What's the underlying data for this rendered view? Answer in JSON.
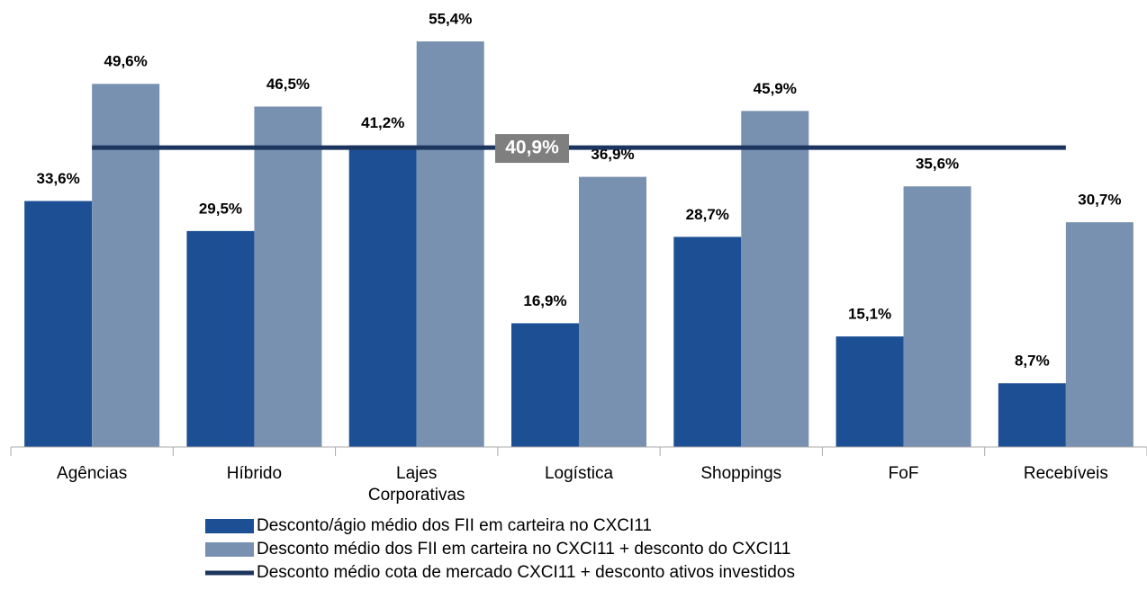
{
  "chart_data": {
    "type": "bar",
    "categories": [
      "Agências",
      "Híbrido",
      "Lajes Corporativas",
      "Logística",
      "Shoppings",
      "FoF",
      "Recebíveis"
    ],
    "series": [
      {
        "name": "Desconto/ágio médio dos FII em carteira no CXCI11",
        "color": "#1c4f94",
        "values": [
          33.6,
          29.5,
          41.2,
          16.9,
          28.7,
          15.1,
          8.7
        ],
        "value_labels": [
          "33,6%",
          "29,5%",
          "41,2%",
          "16,9%",
          "28,7%",
          "15,1%",
          "8,7%"
        ]
      },
      {
        "name": "Desconto médio dos FII em carteira no CXCI11 + desconto do CXCI11",
        "color": "#7891b1",
        "values": [
          49.6,
          46.5,
          55.4,
          36.9,
          45.9,
          35.6,
          30.7
        ],
        "value_labels": [
          "49,6%",
          "46,5%",
          "55,4%",
          "36,9%",
          "45,9%",
          "35,6%",
          "30,7%"
        ]
      },
      {
        "name": "Desconto médio cota de mercado CXCI11 + desconto ativos investidos",
        "color": "#1c355e",
        "type": "line",
        "values": [
          40.9,
          40.9,
          40.9,
          40.9,
          40.9,
          40.9,
          40.9
        ],
        "label": "40,9%"
      }
    ],
    "ylim": [
      0,
      60
    ]
  }
}
